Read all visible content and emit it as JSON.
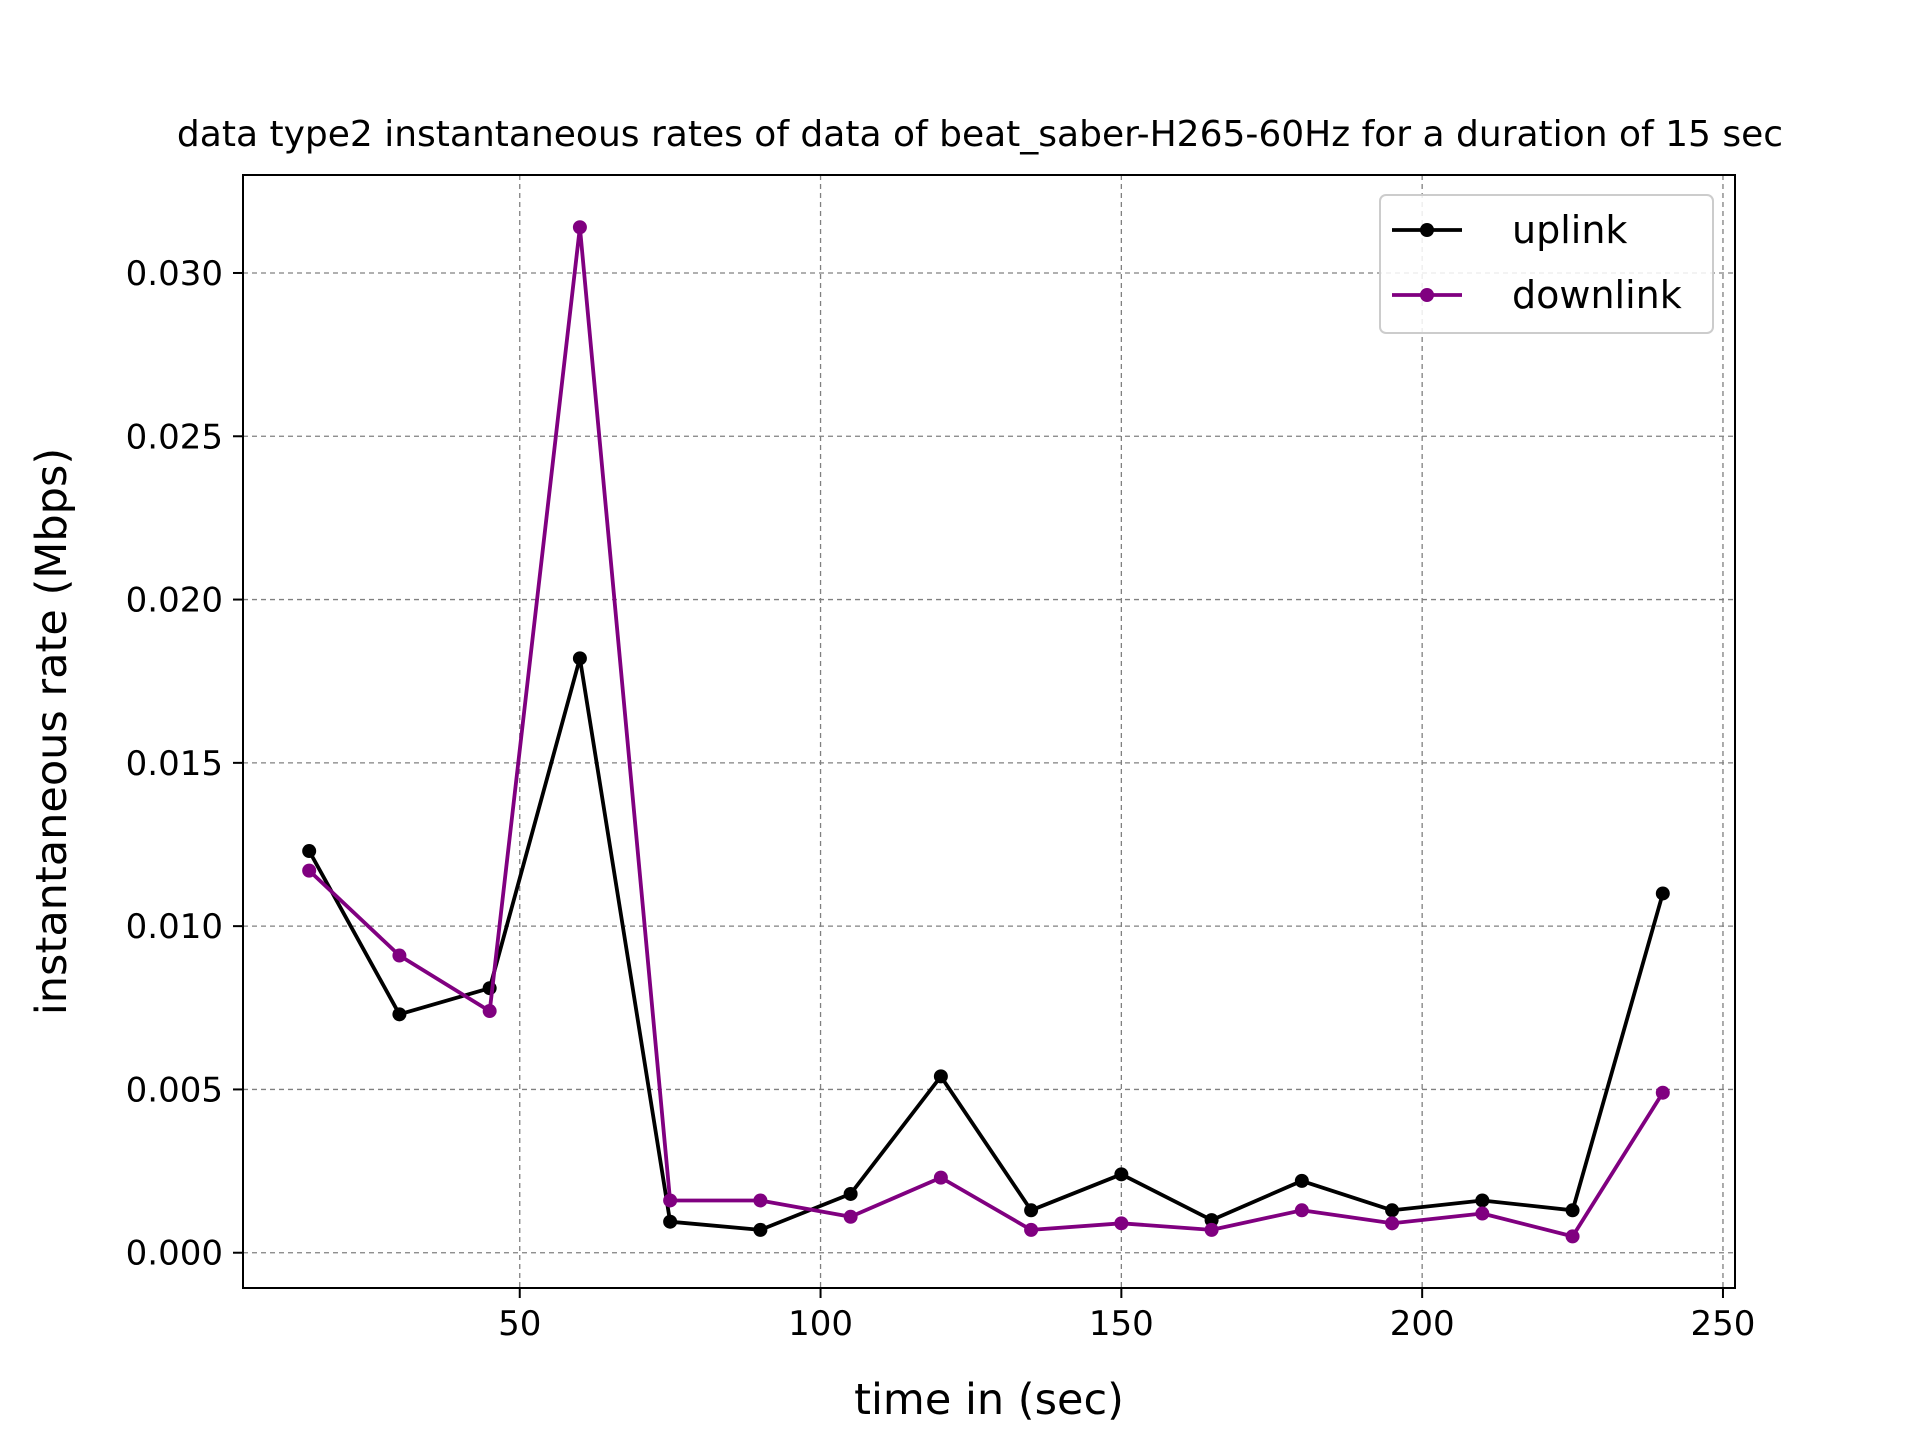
{
  "chart_data": {
    "type": "line",
    "title": "data type2 instantaneous rates of data of beat_saber-H265-60Hz for a duration of 15 sec",
    "xlabel": "time in (sec)",
    "ylabel": "instantaneous rate (Mbps)",
    "xlim": [
      4,
      252
    ],
    "ylim": [
      -0.00108,
      0.033
    ],
    "xticks": [
      50,
      100,
      150,
      200,
      250
    ],
    "xtick_labels": [
      "50",
      "100",
      "150",
      "200",
      "250"
    ],
    "yticks": [
      0.0,
      0.005,
      0.01,
      0.015,
      0.02,
      0.025,
      0.03
    ],
    "ytick_labels": [
      "0.000",
      "0.005",
      "0.010",
      "0.015",
      "0.020",
      "0.025",
      "0.030"
    ],
    "grid": true,
    "legend_position": "top-right",
    "x": [
      15,
      30,
      45,
      60,
      75,
      90,
      105,
      120,
      135,
      150,
      165,
      180,
      195,
      210,
      225,
      240
    ],
    "series": [
      {
        "name": "uplink",
        "color": "#000000",
        "values": [
          0.0123,
          0.0073,
          0.0081,
          0.0182,
          0.00095,
          0.0007,
          0.0018,
          0.0054,
          0.0013,
          0.0024,
          0.001,
          0.0022,
          0.0013,
          0.0016,
          0.0013,
          0.011
        ]
      },
      {
        "name": "downlink",
        "color": "#800080",
        "values": [
          0.0117,
          0.0091,
          0.0074,
          0.0314,
          0.0016,
          0.0016,
          0.0011,
          0.0023,
          0.0007,
          0.0009,
          0.0007,
          0.0013,
          0.0009,
          0.0012,
          0.0005,
          0.0049
        ]
      }
    ]
  }
}
